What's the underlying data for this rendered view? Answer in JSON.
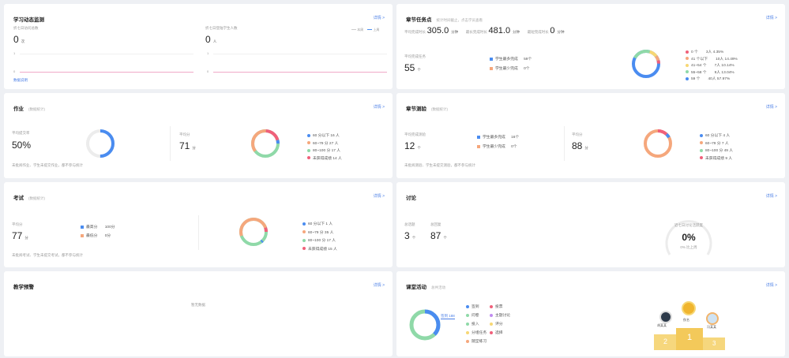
{
  "colors": {
    "blue": "#4a8cf0",
    "green": "#8fd9a8",
    "orange": "#f5a77c",
    "yellow": "#f7d774",
    "red": "#f0607a",
    "purple": "#c08cf0",
    "gray": "#ececec"
  },
  "detail_label": "详情 >",
  "study": {
    "title": "学习动态监测",
    "left_label": "折七日访问总数",
    "left_value": "0",
    "left_unit": "次",
    "right_label": "折七日登陆学生人数",
    "right_value": "0",
    "right_unit": "人",
    "legend_a": "本周",
    "legend_b": "上周",
    "tick_1": "1",
    "tick_0": "0",
    "link": "数据说明"
  },
  "chapter": {
    "title": "章节任务点",
    "subtitle": "统计时间截止，点击学员查看",
    "avg_label": "平均完成时长",
    "avg_value": "305.0",
    "avg_unit": "分钟",
    "max_label": "最长完成时长",
    "max_value": "481.0",
    "max_unit": "分钟",
    "min_label": "最短完成时长",
    "min_value": "0",
    "min_unit": "分钟",
    "count_label": "平均完成任务",
    "count_value": "55",
    "count_unit": "个",
    "mid_a": "学生最多完成",
    "mid_a_val": "59个",
    "mid_b": "学生最少完成",
    "mid_b_val": "0个",
    "legend": [
      {
        "label": "0  个",
        "stat": "3人  4.35%",
        "color": "#f0607a"
      },
      {
        "label": "41 个以下",
        "stat": "10人  14.49%",
        "color": "#f5a77c"
      },
      {
        "label": "41~54 个",
        "stat": "7人  10.14%",
        "color": "#f7d774"
      },
      {
        "label": "55~58 个",
        "stat": "9人  13.04%",
        "color": "#8fd9a8"
      },
      {
        "label": "59  个",
        "stat": "40人  57.97%",
        "color": "#4a8cf0"
      }
    ]
  },
  "homework": {
    "title": "作业",
    "subtitle": "(数据统计)",
    "rate_label": "平均提交率",
    "rate_value": "50%",
    "score_label": "平均分",
    "score_value": "71",
    "score_unit": "分",
    "note": "未批阅作业、学生未提交作业，都不参与统计",
    "legend": [
      {
        "label": "60 分以下  16 人",
        "color": "#4a8cf0"
      },
      {
        "label": "60~79 分  27 人",
        "color": "#f5a77c"
      },
      {
        "label": "80~100 分 17 人",
        "color": "#8fd9a8"
      },
      {
        "label": "未获得成绩 14 人",
        "color": "#f0607a"
      }
    ]
  },
  "exam_ch": {
    "title": "章节测验",
    "subtitle": "(数据统计)",
    "count_label": "平均完成测验",
    "count_value": "12",
    "count_unit": "个",
    "a_label": "学生最多完成",
    "a_val": "16个",
    "b_label": "学生最少完成",
    "b_val": "0个",
    "score_label": "平均分",
    "score_value": "88",
    "score_unit": "分",
    "note": "未批阅测验、学生未提交测验，都不参与统计",
    "legend": [
      {
        "label": "60 分以下  4 人",
        "color": "#4a8cf0"
      },
      {
        "label": "60~79 分  7 人",
        "color": "#f5a77c"
      },
      {
        "label": "80~100 分 49 人",
        "color": "#8fd9a8"
      },
      {
        "label": "未获得成绩 9 人",
        "color": "#f0607a"
      }
    ]
  },
  "test": {
    "title": "考试",
    "subtitle": "(数据统计)",
    "avg_label": "平均分",
    "avg_value": "77",
    "avg_unit": "分",
    "hi_label": "最高分",
    "hi_val": "100分",
    "lo_label": "最低分",
    "lo_val": "0分",
    "note": "未批阅考试、学生未提交考试，都不参与统计",
    "legend": [
      {
        "label": "60 分以下  1 人",
        "color": "#4a8cf0"
      },
      {
        "label": "60~79 分  35 人",
        "color": "#f5a77c"
      },
      {
        "label": "80~100 分 17 人",
        "color": "#8fd9a8"
      },
      {
        "label": "未获得成绩 15 人",
        "color": "#f0607a"
      }
    ]
  },
  "discuss": {
    "title": "讨论",
    "a_label": "总话题",
    "a_value": "3",
    "a_unit": "个",
    "b_label": "总回复",
    "b_value": "87",
    "b_unit": "个",
    "gauge_label": "近七日讨论活跃度",
    "gauge_value": "0%",
    "gauge_note": "0% 比上周"
  },
  "warn": {
    "title": "教学预警",
    "empty": "暂无数据"
  },
  "activity": {
    "title": "课堂活动",
    "subtitle": "总共活动",
    "center_label": "签到 188",
    "items_left": [
      "签到",
      "问卷",
      "投入",
      "分组任务",
      "随堂练习"
    ],
    "items_right": [
      "投票",
      "主题讨论",
      "评分",
      "选择"
    ],
    "podium_1": "佚名",
    "podium_2": "胡某某",
    "podium_3": "冯某某",
    "rank_1": "1",
    "rank_2": "2",
    "rank_3": "3"
  }
}
